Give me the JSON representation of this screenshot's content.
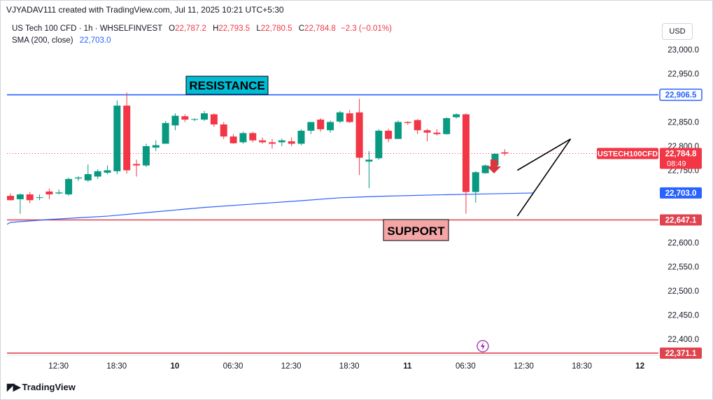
{
  "header": {
    "credit": "VJYADAV111 created with TradingView.com, Jul 11, 2025 10:21 UTC+5:30"
  },
  "legend": {
    "symbol": "US Tech 100 CFD · 1h · WHSELFINVEST",
    "o_label": "O",
    "o_value": "22,787.2",
    "h_label": "H",
    "h_value": "22,793.5",
    "l_label": "L",
    "l_value": "22,780.5",
    "c_label": "C",
    "c_value": "22,784.8",
    "change": "−2.3 (−0.01%)",
    "sma_label": "SMA (200, close)",
    "sma_value": "22,703.0"
  },
  "currency_button": "USD",
  "branding": "TradingView",
  "colors": {
    "up": "#089981",
    "down": "#f23645",
    "sma": "#2962ff",
    "resistance_line": "#2962ff",
    "support_line": "#e0424e",
    "resistance_box": "#00bcd4",
    "support_box": "#f4a6a6",
    "lightning": "#9c27b0"
  },
  "chart_data": {
    "type": "candlestick",
    "y_axis": {
      "ticks": [
        22400,
        22450,
        22500,
        22550,
        22600,
        22650,
        22700,
        22750,
        22800,
        22850,
        22900,
        22950,
        23000
      ],
      "tick_labels": [
        "22,400.0",
        "22,450.0",
        "22,500.0",
        "22,550.0",
        "22,600.0",
        "",
        "",
        "22,750.0",
        "22,800.0",
        "22,850.0",
        "",
        "22,950.0",
        "23,000.0"
      ],
      "ylim": [
        22350,
        23050
      ]
    },
    "x_axis": {
      "tick_labels": [
        "12:30",
        "18:30",
        "10",
        "06:30",
        "12:30",
        "18:30",
        "11",
        "06:30",
        "12:30",
        "18:30",
        "12"
      ],
      "tick_index": [
        2,
        8,
        14,
        20,
        26,
        32,
        38,
        44,
        50,
        56,
        62
      ],
      "bold_index": [
        2,
        6,
        10
      ],
      "xlim": [
        0,
        66.5
      ]
    },
    "price_labels": [
      {
        "value": 22906.5,
        "text": "22,906.5",
        "kind": "resistance"
      },
      {
        "value": 22703.0,
        "text": "22,703.0",
        "kind": "sma"
      },
      {
        "value": 22647.1,
        "text": "22,647.1",
        "kind": "support"
      },
      {
        "value": 22371.1,
        "text": "22,371.1",
        "kind": "support"
      }
    ],
    "current_price": {
      "symbol": "USTECH100CFD",
      "value": 22784.8,
      "text": "22,784.8",
      "countdown": "08:49"
    },
    "horizontal_lines": [
      {
        "name": "resistance",
        "value": 22906.5
      },
      {
        "name": "support",
        "value": 22647.1
      },
      {
        "name": "support",
        "value": 22371.1
      }
    ],
    "annotations": {
      "resistance_label": "RESISTANCE",
      "support_label": "SUPPORT"
    },
    "candles": [
      {
        "o": 22697,
        "h": 22702,
        "l": 22688,
        "c": 22688
      },
      {
        "o": 22690,
        "h": 22702,
        "l": 22660,
        "c": 22700
      },
      {
        "o": 22700,
        "h": 22705,
        "l": 22682,
        "c": 22688
      },
      {
        "o": 22693,
        "h": 22700,
        "l": 22688,
        "c": 22694
      },
      {
        "o": 22706,
        "h": 22712,
        "l": 22690,
        "c": 22700
      },
      {
        "o": 22702,
        "h": 22710,
        "l": 22700,
        "c": 22704
      },
      {
        "o": 22700,
        "h": 22735,
        "l": 22697,
        "c": 22732
      },
      {
        "o": 22733,
        "h": 22738,
        "l": 22728,
        "c": 22735
      },
      {
        "o": 22729,
        "h": 22762,
        "l": 22726,
        "c": 22742
      },
      {
        "o": 22737,
        "h": 22752,
        "l": 22732,
        "c": 22748
      },
      {
        "o": 22745,
        "h": 22760,
        "l": 22742,
        "c": 22750
      },
      {
        "o": 22748,
        "h": 22895,
        "l": 22742,
        "c": 22884
      },
      {
        "o": 22884,
        "h": 22911,
        "l": 22743,
        "c": 22750
      },
      {
        "o": 22763,
        "h": 22772,
        "l": 22737,
        "c": 22760
      },
      {
        "o": 22760,
        "h": 22805,
        "l": 22757,
        "c": 22800
      },
      {
        "o": 22797,
        "h": 22812,
        "l": 22790,
        "c": 22802
      },
      {
        "o": 22805,
        "h": 22852,
        "l": 22805,
        "c": 22848
      },
      {
        "o": 22843,
        "h": 22868,
        "l": 22833,
        "c": 22863
      },
      {
        "o": 22862,
        "h": 22866,
        "l": 22850,
        "c": 22855
      },
      {
        "o": 22855,
        "h": 22858,
        "l": 22852,
        "c": 22856
      },
      {
        "o": 22855,
        "h": 22873,
        "l": 22852,
        "c": 22868
      },
      {
        "o": 22866,
        "h": 22868,
        "l": 22840,
        "c": 22845
      },
      {
        "o": 22845,
        "h": 22850,
        "l": 22815,
        "c": 22820
      },
      {
        "o": 22820,
        "h": 22825,
        "l": 22805,
        "c": 22806
      },
      {
        "o": 22808,
        "h": 22830,
        "l": 22805,
        "c": 22827
      },
      {
        "o": 22827,
        "h": 22830,
        "l": 22808,
        "c": 22812
      },
      {
        "o": 22812,
        "h": 22818,
        "l": 22805,
        "c": 22808
      },
      {
        "o": 22808,
        "h": 22815,
        "l": 22795,
        "c": 22805
      },
      {
        "o": 22808,
        "h": 22816,
        "l": 22800,
        "c": 22812
      },
      {
        "o": 22810,
        "h": 22818,
        "l": 22800,
        "c": 22805
      },
      {
        "o": 22805,
        "h": 22835,
        "l": 22802,
        "c": 22832
      },
      {
        "o": 22832,
        "h": 22848,
        "l": 22825,
        "c": 22850
      },
      {
        "o": 22855,
        "h": 22858,
        "l": 22830,
        "c": 22835
      },
      {
        "o": 22833,
        "h": 22853,
        "l": 22828,
        "c": 22850
      },
      {
        "o": 22851,
        "h": 22873,
        "l": 22848,
        "c": 22870
      },
      {
        "o": 22868,
        "h": 22875,
        "l": 22848,
        "c": 22850
      },
      {
        "o": 22870,
        "h": 22898,
        "l": 22740,
        "c": 22776
      },
      {
        "o": 22768,
        "h": 22790,
        "l": 22713,
        "c": 22772
      },
      {
        "o": 22775,
        "h": 22835,
        "l": 22772,
        "c": 22832
      },
      {
        "o": 22832,
        "h": 22836,
        "l": 22808,
        "c": 22815
      },
      {
        "o": 22815,
        "h": 22853,
        "l": 22815,
        "c": 22850
      },
      {
        "o": 22850,
        "h": 22852,
        "l": 22844,
        "c": 22848
      },
      {
        "o": 22854,
        "h": 22856,
        "l": 22825,
        "c": 22833
      },
      {
        "o": 22833,
        "h": 22836,
        "l": 22810,
        "c": 22828
      },
      {
        "o": 22828,
        "h": 22835,
        "l": 22822,
        "c": 22825
      },
      {
        "o": 22825,
        "h": 22860,
        "l": 22824,
        "c": 22858
      },
      {
        "o": 22860,
        "h": 22868,
        "l": 22857,
        "c": 22866
      },
      {
        "o": 22866,
        "h": 22868,
        "l": 22660,
        "c": 22705
      },
      {
        "o": 22705,
        "h": 22748,
        "l": 22683,
        "c": 22746
      },
      {
        "o": 22744,
        "h": 22762,
        "l": 22743,
        "c": 22760
      },
      {
        "o": 22760,
        "h": 22785,
        "l": 22758,
        "c": 22784
      },
      {
        "o": 22787.2,
        "h": 22793.5,
        "l": 22780.5,
        "c": 22784.8
      }
    ],
    "sma_200": [
      {
        "i": 0,
        "v": 22642
      },
      {
        "i": 4,
        "v": 22648
      },
      {
        "i": 10,
        "v": 22655
      },
      {
        "i": 15,
        "v": 22664
      },
      {
        "i": 20,
        "v": 22673
      },
      {
        "i": 25,
        "v": 22680
      },
      {
        "i": 30,
        "v": 22687
      },
      {
        "i": 34,
        "v": 22693
      },
      {
        "i": 38,
        "v": 22696
      },
      {
        "i": 44,
        "v": 22699
      },
      {
        "i": 49,
        "v": 22701
      },
      {
        "i": 54,
        "v": 22703
      }
    ],
    "wedge": {
      "upper": [
        {
          "i": 52.3,
          "v": 22750
        },
        {
          "i": 57.8,
          "v": 22815
        }
      ],
      "lower": [
        {
          "i": 52.3,
          "v": 22655
        },
        {
          "i": 57.8,
          "v": 22815
        }
      ]
    }
  }
}
